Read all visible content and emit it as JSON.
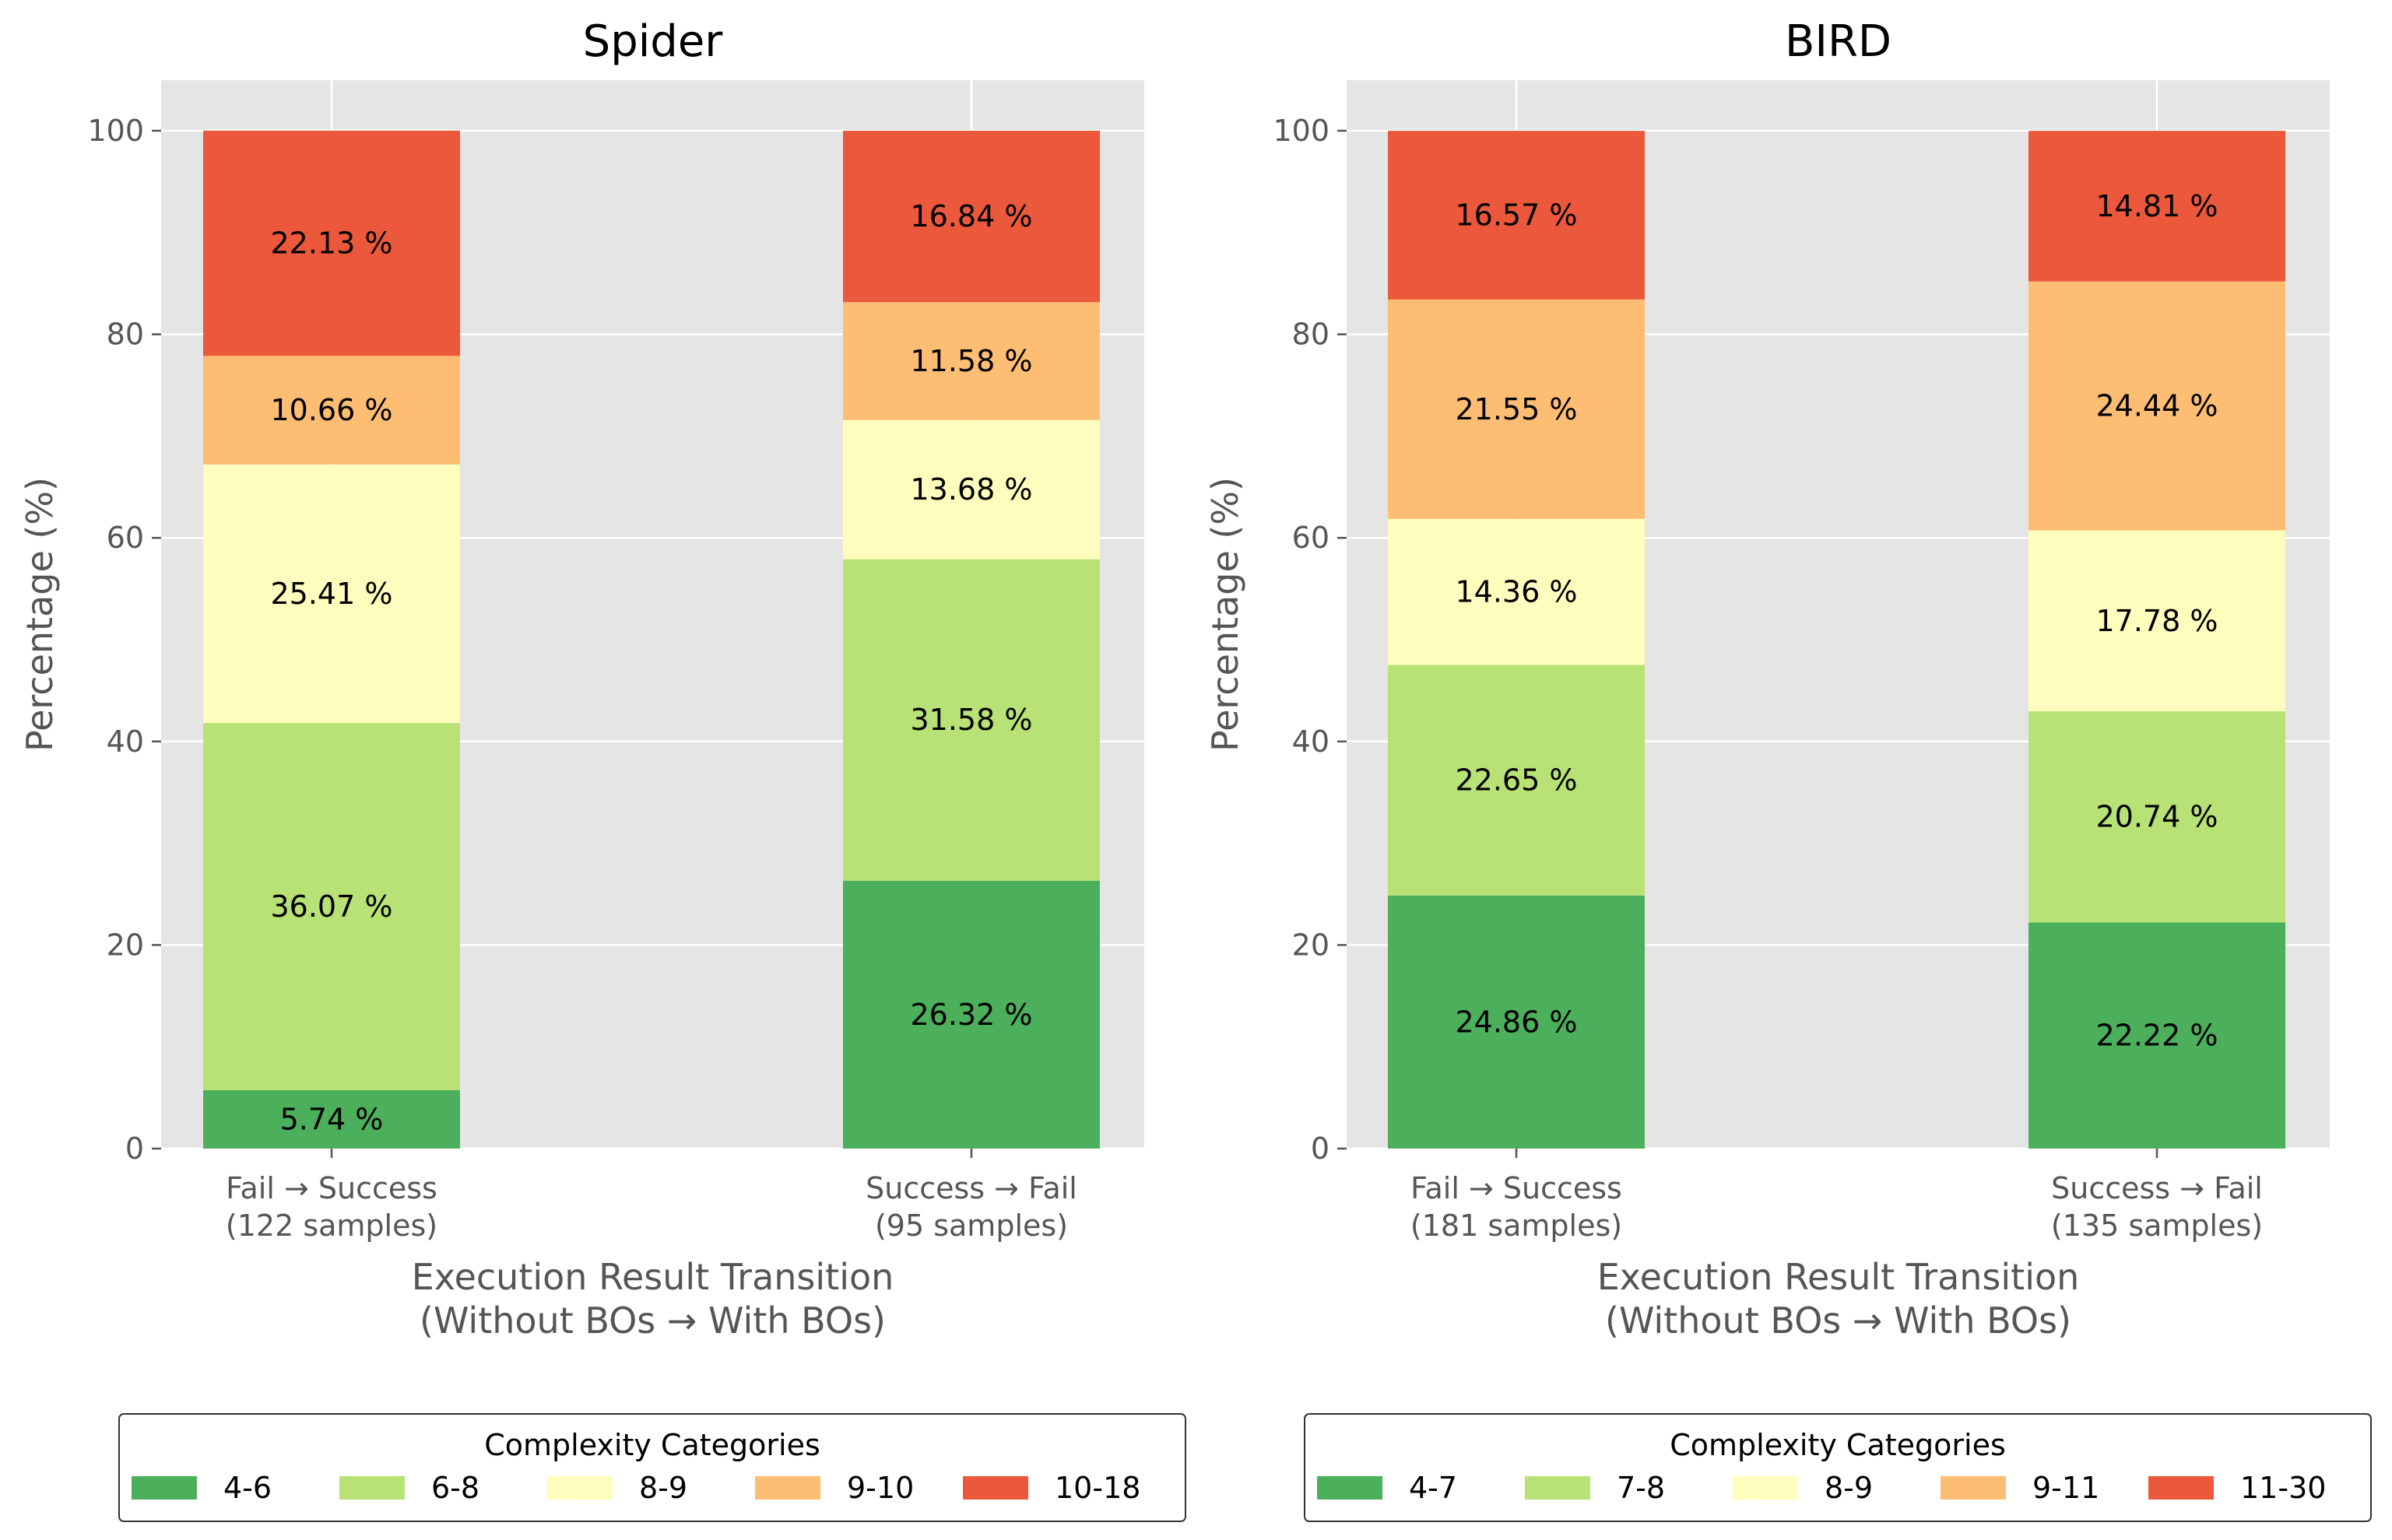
{
  "chart_data": [
    {
      "type": "bar",
      "stacked": true,
      "title": "Spider",
      "xlabel": [
        "Execution Result Transition",
        "(Without BOs → With BOs)"
      ],
      "ylabel": "Percentage (%)",
      "ylim": [
        0,
        100
      ],
      "yticks": [
        "0",
        "20",
        "40",
        "60",
        "80",
        "100"
      ],
      "grid": true,
      "categories": [
        [
          "Fail → Success",
          "(122 samples)"
        ],
        [
          "Success → Fail",
          "(95 samples)"
        ]
      ],
      "legend": {
        "title": "Complexity Categories",
        "placement": "bottom"
      },
      "series": [
        {
          "name": "4-6",
          "color": "#4caf5b",
          "values": [
            5.74,
            26.32
          ],
          "labels": [
            "5.74 %",
            "26.32 %"
          ]
        },
        {
          "name": "6-8",
          "color": "#b8e176",
          "values": [
            36.07,
            31.58
          ],
          "labels": [
            "36.07 %",
            "31.58 %"
          ]
        },
        {
          "name": "8-9",
          "color": "#fefdbd",
          "values": [
            25.41,
            13.68
          ],
          "labels": [
            "25.41 %",
            "13.68 %"
          ]
        },
        {
          "name": "9-10",
          "color": "#fdbd73",
          "values": [
            10.66,
            11.58
          ],
          "labels": [
            "10.66 %",
            "11.58 %"
          ]
        },
        {
          "name": "10-18",
          "color": "#eb583b",
          "values": [
            22.13,
            16.84
          ],
          "labels": [
            "22.13 %",
            "16.84 %"
          ]
        }
      ]
    },
    {
      "type": "bar",
      "stacked": true,
      "title": "BIRD",
      "xlabel": [
        "Execution Result Transition",
        "(Without BOs → With BOs)"
      ],
      "ylabel": "Percentage (%)",
      "ylim": [
        0,
        100
      ],
      "yticks": [
        "0",
        "20",
        "40",
        "60",
        "80",
        "100"
      ],
      "grid": true,
      "categories": [
        [
          "Fail → Success",
          "(181 samples)"
        ],
        [
          "Success → Fail",
          "(135 samples)"
        ]
      ],
      "legend": {
        "title": "Complexity Categories",
        "placement": "bottom"
      },
      "series": [
        {
          "name": "4-7",
          "color": "#4caf5b",
          "values": [
            24.86,
            22.22
          ],
          "labels": [
            "24.86 %",
            "22.22 %"
          ]
        },
        {
          "name": "7-8",
          "color": "#b8e176",
          "values": [
            22.65,
            20.74
          ],
          "labels": [
            "22.65 %",
            "20.74 %"
          ]
        },
        {
          "name": "8-9",
          "color": "#fefdbd",
          "values": [
            14.36,
            17.78
          ],
          "labels": [
            "14.36 %",
            "17.78 %"
          ]
        },
        {
          "name": "9-11",
          "color": "#fdbd73",
          "values": [
            21.55,
            24.44
          ],
          "labels": [
            "21.55 %",
            "24.44 %"
          ]
        },
        {
          "name": "11-30",
          "color": "#eb583b",
          "values": [
            16.57,
            14.81
          ],
          "labels": [
            "16.57 %",
            "14.81 %"
          ]
        }
      ]
    }
  ]
}
